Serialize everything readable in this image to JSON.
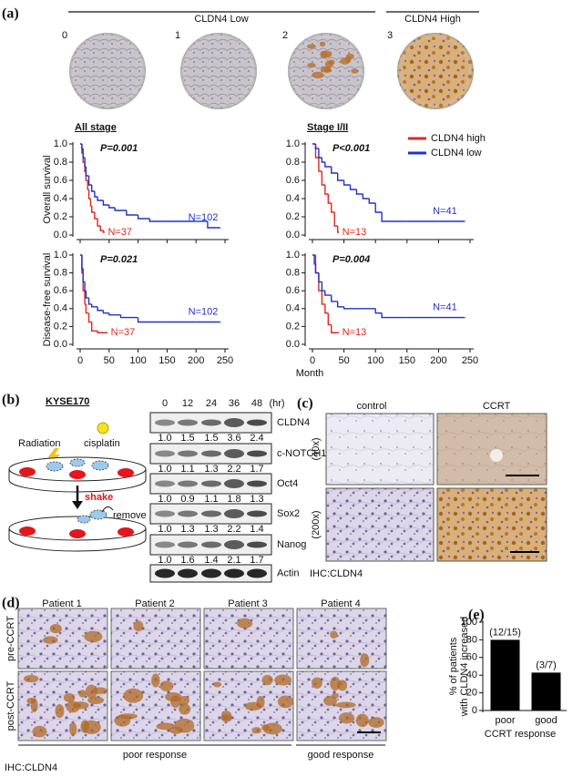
{
  "panel_labels": [
    "(a)",
    "(b)",
    "(c)",
    "(d)",
    "(e)"
  ],
  "panel_a": {
    "groups": [
      "CLDN4 Low",
      "CLDN4 High"
    ],
    "scores": [
      0,
      1,
      2,
      3
    ]
  },
  "chart_data": [
    {
      "type": "line",
      "step": true,
      "title": "All stage",
      "ylabel": "Overall survival",
      "annotation": "P=0.001",
      "xlim": [
        0,
        250
      ],
      "xticks": [
        0,
        50,
        100,
        150,
        200,
        250
      ],
      "xtick_labels": false,
      "ylim": [
        0,
        1
      ],
      "yticks": [
        {
          "value": 0,
          "label": "0.0"
        },
        0.2,
        0.4,
        0.6,
        0.8,
        {
          "value": 1,
          "label": "1.0"
        }
      ],
      "series": [
        {
          "name": "CLDN4 high",
          "color": "#e0261f",
          "label": "N=37",
          "x": [
            0,
            3,
            5,
            8,
            10,
            13,
            15,
            18,
            20,
            25,
            30,
            35,
            40
          ],
          "values": [
            1,
            0.9,
            0.8,
            0.7,
            0.6,
            0.5,
            0.4,
            0.32,
            0.25,
            0.18,
            0.1,
            0.05,
            0.03
          ]
        },
        {
          "name": "CLDN4 low",
          "color": "#1f33c4",
          "label": "N=102",
          "x": [
            0,
            3,
            5,
            8,
            10,
            15,
            20,
            25,
            30,
            40,
            50,
            60,
            80,
            100,
            120,
            150,
            200,
            220,
            240
          ],
          "values": [
            1,
            0.95,
            0.85,
            0.75,
            0.65,
            0.55,
            0.48,
            0.42,
            0.38,
            0.33,
            0.3,
            0.27,
            0.22,
            0.18,
            0.15,
            0.15,
            0.15,
            0.08,
            0.08
          ]
        }
      ]
    },
    {
      "type": "line",
      "step": true,
      "title": "Stage I/II",
      "annotation": "P<0.001",
      "legend": "upper right",
      "xlim": [
        0,
        250
      ],
      "xticks": [
        0,
        50,
        100,
        150,
        200,
        250
      ],
      "xtick_labels": false,
      "ylim": [
        0,
        1
      ],
      "yticks": [
        {
          "value": 0,
          "label": "0.0"
        },
        0.2,
        0.4,
        0.6,
        0.8,
        {
          "value": 1,
          "label": "1.0"
        }
      ],
      "series": [
        {
          "name": "CLDN4 high",
          "color": "#e0261f",
          "label": "N=13",
          "x": [
            0,
            5,
            10,
            15,
            20,
            25,
            30,
            35,
            40
          ],
          "values": [
            1,
            0.85,
            0.7,
            0.55,
            0.45,
            0.35,
            0.25,
            0.1,
            0.03
          ]
        },
        {
          "name": "CLDN4 low",
          "color": "#1f33c4",
          "label": "N=41",
          "x": [
            0,
            5,
            10,
            15,
            20,
            30,
            40,
            50,
            60,
            70,
            80,
            90,
            100,
            110,
            150,
            200,
            240
          ],
          "values": [
            1,
            0.95,
            0.85,
            0.8,
            0.75,
            0.68,
            0.6,
            0.55,
            0.5,
            0.45,
            0.4,
            0.35,
            0.25,
            0.15,
            0.15,
            0.15,
            0.15
          ]
        }
      ]
    },
    {
      "type": "line",
      "step": true,
      "ylabel": "Disease-free survival",
      "annotation": "P=0.021",
      "xlim": [
        0,
        250
      ],
      "xticks": [
        0,
        50,
        100,
        150,
        200,
        250
      ],
      "ylim": [
        0,
        1
      ],
      "yticks": [
        {
          "value": 0,
          "label": "0.0"
        },
        0.2,
        0.4,
        0.6,
        0.8,
        {
          "value": 1,
          "label": "1.0"
        }
      ],
      "series": [
        {
          "name": "CLDN4 high",
          "color": "#e0261f",
          "label": "N=37",
          "x": [
            0,
            3,
            5,
            8,
            10,
            15,
            20,
            30,
            45
          ],
          "values": [
            1,
            0.8,
            0.6,
            0.45,
            0.35,
            0.25,
            0.15,
            0.13,
            0.13
          ]
        },
        {
          "name": "CLDN4 low",
          "color": "#1f33c4",
          "label": "N=102",
          "x": [
            0,
            3,
            5,
            8,
            10,
            15,
            20,
            30,
            40,
            50,
            70,
            100,
            150,
            200,
            240
          ],
          "values": [
            1,
            0.85,
            0.7,
            0.6,
            0.52,
            0.45,
            0.42,
            0.38,
            0.35,
            0.33,
            0.3,
            0.25,
            0.25,
            0.25,
            0.25
          ]
        }
      ]
    },
    {
      "type": "line",
      "step": true,
      "annotation": "P=0.004",
      "xlabel": "Month",
      "xlim": [
        0,
        250
      ],
      "xticks": [
        0,
        50,
        100,
        150,
        200,
        250
      ],
      "ylim": [
        0,
        1
      ],
      "yticks": [
        {
          "value": 0,
          "label": "0.0"
        },
        0.2,
        0.4,
        0.6,
        0.8,
        {
          "value": 1,
          "label": "1.0"
        }
      ],
      "series": [
        {
          "name": "CLDN4 high",
          "color": "#e0261f",
          "label": "N=13",
          "x": [
            0,
            5,
            10,
            15,
            20,
            25,
            30,
            40
          ],
          "values": [
            1,
            0.8,
            0.6,
            0.45,
            0.35,
            0.22,
            0.13,
            0.13
          ]
        },
        {
          "name": "CLDN4 low",
          "color": "#1f33c4",
          "label": "N=41",
          "x": [
            0,
            3,
            5,
            10,
            15,
            20,
            30,
            40,
            50,
            70,
            100,
            110,
            150,
            200,
            240
          ],
          "values": [
            1,
            0.9,
            0.8,
            0.7,
            0.6,
            0.55,
            0.48,
            0.42,
            0.4,
            0.4,
            0.35,
            0.3,
            0.3,
            0.3,
            0.3
          ]
        }
      ]
    },
    {
      "type": "bar",
      "categories": [
        "poor",
        "good"
      ],
      "values": [
        80,
        42.9
      ],
      "value_labels": [
        "(12/15)",
        "(3/7)"
      ],
      "color": "#000000",
      "ylabel": [
        "% of patients",
        "with CLDN4 increased"
      ],
      "xlabel": "CCRT response",
      "ylim": [
        0,
        100
      ],
      "yticks": [
        0,
        20,
        40,
        60,
        80,
        100
      ]
    }
  ],
  "panel_b": {
    "cell_line": "KYSE170",
    "treatments": [
      "Radiation",
      "cisplatin"
    ],
    "steps": [
      "shake",
      "remove"
    ],
    "blot": {
      "times": [
        0,
        12,
        24,
        36,
        48
      ],
      "time_unit": "(hr)",
      "rows": [
        {
          "protein": "CLDN4",
          "quant": [
            "1.0",
            "1.5",
            "1.5",
            "3.6",
            "2.4"
          ]
        },
        {
          "protein": "c-NOTCH1",
          "quant": [
            "1.0",
            "1.1",
            "1.3",
            "2.2",
            "1.7"
          ]
        },
        {
          "protein": "Oct4",
          "quant": [
            "1.0",
            "0.9",
            "1.1",
            "1.8",
            "1.3"
          ]
        },
        {
          "protein": "Sox2",
          "quant": [
            "1.0",
            "1.3",
            "1.3",
            "2.2",
            "1.4"
          ]
        },
        {
          "protein": "Nanog",
          "quant": [
            "1.0",
            "1.6",
            "1.4",
            "2.1",
            "1.7"
          ]
        },
        {
          "protein": "Actin"
        }
      ]
    }
  },
  "panel_c": {
    "columns": [
      "control",
      "CCRT"
    ],
    "magnifications": [
      "(40x)",
      "(200x)"
    ],
    "stain": "IHC:CLDN4"
  },
  "panel_d": {
    "patients": [
      "Patient 1",
      "Patient 2",
      "Patient 3",
      "Patient 4"
    ],
    "timepoints": [
      "pre-CCRT",
      "post-CCRT"
    ],
    "responses": [
      "poor response",
      "good response"
    ],
    "stain": "IHC:CLDN4"
  }
}
